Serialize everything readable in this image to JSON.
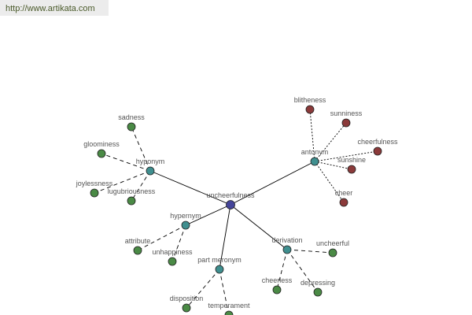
{
  "header": {
    "url": "http://www.artikata.com"
  },
  "colors": {
    "center": "#45459a",
    "relation": "#3f8f8f",
    "synonym_like": "#4a8a45",
    "antonym": "#8b3a3a"
  },
  "graph": {
    "center": "uncheerfulness",
    "relations": [
      {
        "label": "hyponym",
        "words": [
          "sadness",
          "gloominess",
          "joylessness",
          "lugubriousness"
        ],
        "word_color": "green"
      },
      {
        "label": "antonym",
        "words": [
          "blitheness",
          "sunniness",
          "cheerfulness",
          "sunshine",
          "cheer"
        ],
        "word_color": "red"
      },
      {
        "label": "hypernym",
        "words": [
          "attribute",
          "unhappiness"
        ],
        "word_color": "green"
      },
      {
        "label": "part meronym",
        "words": [
          "disposition",
          "temperament"
        ],
        "word_color": "green"
      },
      {
        "label": "derivation",
        "words": [
          "uncheerful",
          "cheerless",
          "depressing"
        ],
        "word_color": "green"
      }
    ]
  }
}
